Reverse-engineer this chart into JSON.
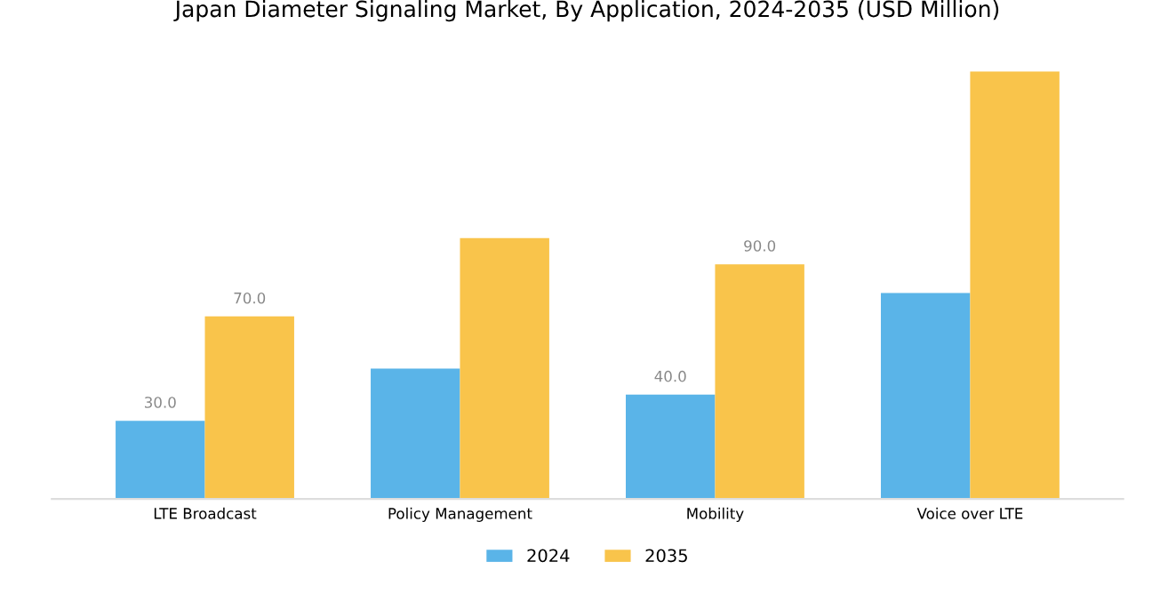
{
  "chart_data": {
    "type": "bar",
    "title": "Japan Diameter Signaling Market, By Application, 2024-2035 (USD Million)",
    "categories": [
      "LTE Broadcast",
      "Policy Management",
      "Mobility",
      "Voice over LTE"
    ],
    "series": [
      {
        "name": "2024",
        "color": "#5ab4e8",
        "values": [
          30,
          50,
          40,
          79
        ],
        "value_labels": [
          "30.0",
          null,
          "40.0",
          null
        ]
      },
      {
        "name": "2035",
        "color": "#f9c44b",
        "values": [
          70,
          100,
          90,
          164
        ],
        "value_labels": [
          "70.0",
          null,
          "90.0",
          null
        ]
      }
    ],
    "legend": "bottom",
    "grid": false
  }
}
